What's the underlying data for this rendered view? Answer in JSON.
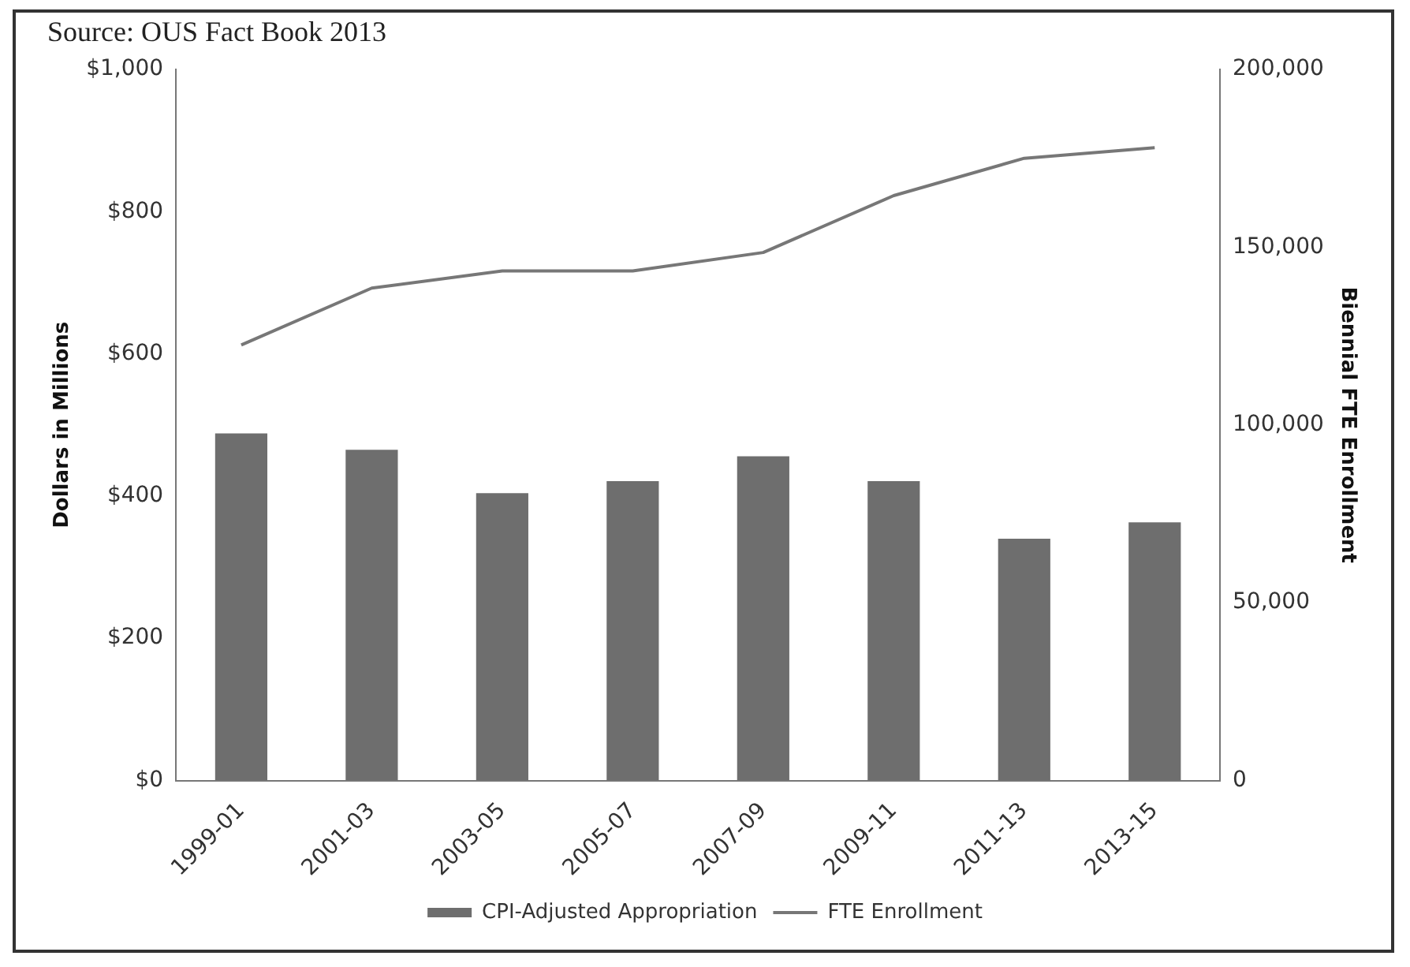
{
  "chart_data": {
    "type": "bar",
    "ylabel": "Dollars in Millions",
    "y2label": "Biennial FTE Enrollment",
    "annotations": [
      "Source: OUS Fact Book 2013"
    ],
    "categories": [
      "1999-01",
      "2001-03",
      "2003-05",
      "2005-07",
      "2007-09",
      "2009-11",
      "2011-13",
      "2013-15"
    ],
    "series": [
      {
        "name": "CPI-Adjusted Appropriation",
        "color": "#6e6e6e",
        "values": [
          488,
          465,
          404,
          421,
          456,
          421,
          340,
          363
        ]
      },
      {
        "name": "FTE Enrollment",
        "type": "line",
        "axis": "y2",
        "color": "#777777",
        "values": [
          122500,
          138500,
          143300,
          143300,
          148500,
          164500,
          175000,
          178000
        ]
      }
    ],
    "ylim": [
      0,
      1000
    ],
    "yticks": [
      {
        "value": 0,
        "label": "$0"
      },
      {
        "value": 200,
        "label": "$200"
      },
      {
        "value": 400,
        "label": "$400"
      },
      {
        "value": 600,
        "label": "$600"
      },
      {
        "value": 800,
        "label": "$800"
      },
      {
        "value": 1000,
        "label": "$1,000"
      }
    ],
    "y2lim": [
      0,
      200000
    ],
    "y2ticks": [
      {
        "value": 0,
        "label": "0"
      },
      {
        "value": 50000,
        "label": "50,000"
      },
      {
        "value": 100000,
        "label": "100,000"
      },
      {
        "value": 150000,
        "label": "150,000"
      },
      {
        "value": 200000,
        "label": "200,000"
      }
    ],
    "grid": false,
    "legend": "bottom",
    "marker": "none",
    "line_style": "solid"
  }
}
